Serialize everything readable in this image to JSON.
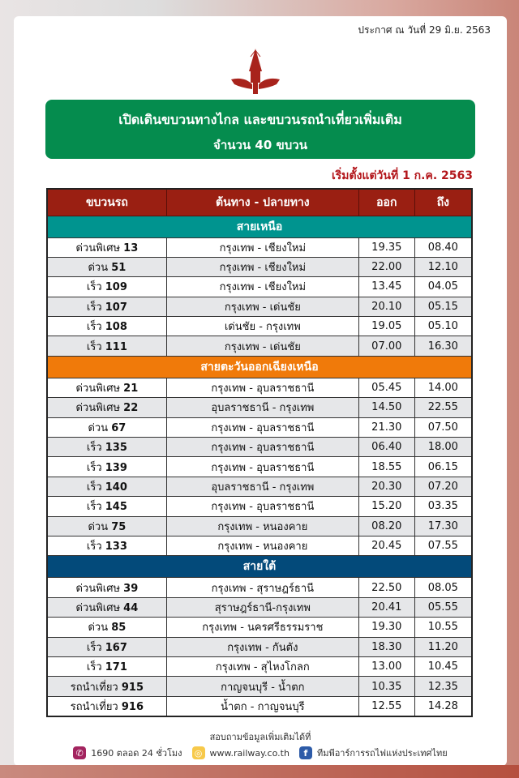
{
  "announcement": "ประกาศ ณ วันที่ 29 มิ.ย. 2563",
  "logo_text": "การรถไฟแห่งประเทศไทย",
  "banner": {
    "line1": "เปิดเดินขบวนทางไกล และขบวนรถนำเที่ยวเพิ่มเติม",
    "line2": "จำนวน 40 ขบวน"
  },
  "start_date": "เริ่มตั้งแต่วันที่ 1 ก.ค. 2563",
  "colors": {
    "banner": "#058c4e",
    "header": "#9a1f12",
    "north": "#00948f",
    "northeast": "#f07a0a",
    "south": "#034a7a",
    "start_date": "#b3161b"
  },
  "table": {
    "headers": [
      "ขบวนรถ",
      "ต้นทาง -  ปลายทาง",
      "ออก",
      "ถึง"
    ],
    "sections": [
      {
        "name": "สายเหนือ",
        "color": "#00948f",
        "rows": [
          {
            "type": "ด่วนพิเศษ",
            "num": "13",
            "route": "กรุงเทพ - เชียงใหม่",
            "dep": "19.35",
            "arr": "08.40"
          },
          {
            "type": "ด่วน",
            "num": "51",
            "route": "กรุงเทพ - เชียงใหม่",
            "dep": "22.00",
            "arr": "12.10"
          },
          {
            "type": "เร็ว",
            "num": "109",
            "route": "กรุงเทพ - เชียงใหม่",
            "dep": "13.45",
            "arr": "04.05"
          },
          {
            "type": "เร็ว",
            "num": "107",
            "route": "กรุงเทพ - เด่นชัย",
            "dep": "20.10",
            "arr": "05.15"
          },
          {
            "type": "เร็ว",
            "num": "108",
            "route": "เด่นชัย - กรุงเทพ",
            "dep": "19.05",
            "arr": "05.10"
          },
          {
            "type": "เร็ว",
            "num": "111",
            "route": "กรุงเทพ - เด่นชัย",
            "dep": "07.00",
            "arr": "16.30"
          }
        ]
      },
      {
        "name": "สายตะวันออกเฉียงเหนือ",
        "color": "#f07a0a",
        "rows": [
          {
            "type": "ด่วนพิเศษ",
            "num": "21",
            "route": "กรุงเทพ - อุบลราชธานี",
            "dep": "05.45",
            "arr": "14.00"
          },
          {
            "type": "ด่วนพิเศษ",
            "num": "22",
            "route": "อุบลราชธานี - กรุงเทพ",
            "dep": "14.50",
            "arr": "22.55"
          },
          {
            "type": "ด่วน",
            "num": "67",
            "route": "กรุงเทพ - อุบลราชธานี",
            "dep": "21.30",
            "arr": "07.50"
          },
          {
            "type": "เร็ว",
            "num": "135",
            "route": "กรุงเทพ - อุบลราชธานี",
            "dep": "06.40",
            "arr": "18.00"
          },
          {
            "type": "เร็ว",
            "num": "139",
            "route": "กรุงเทพ - อุบลราชธานี",
            "dep": "18.55",
            "arr": "06.15"
          },
          {
            "type": "เร็ว",
            "num": "140",
            "route": "อุบลราชธานี - กรุงเทพ",
            "dep": "20.30",
            "arr": "07.20"
          },
          {
            "type": "เร็ว",
            "num": "145",
            "route": "กรุงเทพ - อุบลราชธานี",
            "dep": "15.20",
            "arr": "03.35"
          },
          {
            "type": "ด่วน",
            "num": "75",
            "route": "กรุงเทพ - หนองคาย",
            "dep": "08.20",
            "arr": "17.30"
          },
          {
            "type": "เร็ว",
            "num": "133",
            "route": "กรุงเทพ - หนองคาย",
            "dep": "20.45",
            "arr": "07.55"
          }
        ]
      },
      {
        "name": "สายใต้",
        "color": "#034a7a",
        "rows": [
          {
            "type": "ด่วนพิเศษ",
            "num": "39",
            "route": "กรุงเทพ - สุราษฎร์ธานี",
            "dep": "22.50",
            "arr": "08.05"
          },
          {
            "type": "ด่วนพิเศษ",
            "num": "44",
            "route": "สุราษฎร์ธานี-กรุงเทพ",
            "dep": "20.41",
            "arr": "05.55"
          },
          {
            "type": "ด่วน",
            "num": "85",
            "route": "กรุงเทพ - นครศรีธรรมราช",
            "dep": "19.30",
            "arr": "10.55"
          },
          {
            "type": "เร็ว",
            "num": "167",
            "route": "กรุงเทพ - กันตัง",
            "dep": "18.30",
            "arr": "11.20"
          },
          {
            "type": "เร็ว",
            "num": "171",
            "route": "กรุงเทพ - สุไหงโกลก",
            "dep": "13.00",
            "arr": "10.45"
          },
          {
            "type": "รถนำเที่ยว",
            "num": "915",
            "route": "กาญจนบุรี - น้ำตก",
            "dep": "10.35",
            "arr": "12.35"
          },
          {
            "type": "รถนำเที่ยว",
            "num": "916",
            "route": "น้ำตก - กาญจนบุรี",
            "dep": "12.55",
            "arr": "14.28"
          }
        ]
      }
    ]
  },
  "footer": {
    "inquiry": "สอบถามข้อมูลเพิ่มเติมได้ที่",
    "phone": "1690 ตลอด 24 ชั่วโมง",
    "website": "www.railway.co.th",
    "facebook": "ทีมพีอาร์การรถไฟแห่งประเทศไทย",
    "icons": [
      "phone-icon",
      "globe-icon",
      "facebook-icon"
    ]
  }
}
